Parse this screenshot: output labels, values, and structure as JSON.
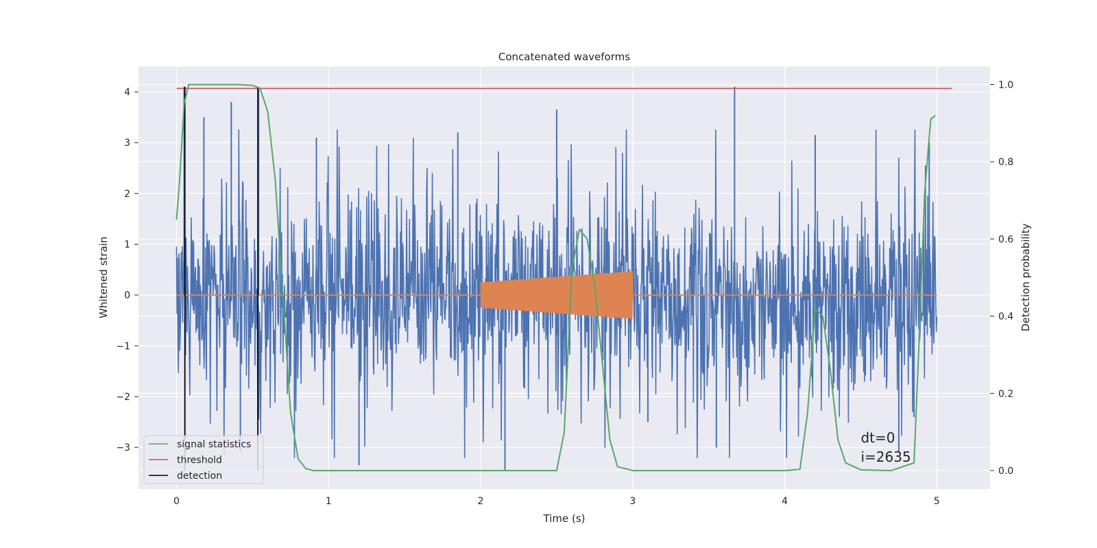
{
  "chart_data": {
    "type": "line",
    "title": "Concatenated waveforms",
    "xlabel": "Time (s)",
    "ylabel_left": "Whitened strain",
    "ylabel_right": "Detection probability",
    "xlim": [
      -0.25,
      5.35
    ],
    "ylim_left": [
      -3.82,
      4.5
    ],
    "ylim_right": [
      -0.048,
      1.047
    ],
    "xticks": [
      0,
      1,
      2,
      3,
      4,
      5
    ],
    "xtick_labels": [
      "0",
      "1",
      "2",
      "3",
      "4",
      "5"
    ],
    "yticks_left": [
      -3,
      -2,
      -1,
      0,
      1,
      2,
      3,
      4
    ],
    "ytick_labels_left": [
      "−3",
      "−2",
      "−1",
      "0",
      "1",
      "2",
      "3",
      "4"
    ],
    "yticks_right": [
      0.0,
      0.2,
      0.4,
      0.6,
      0.8,
      1.0
    ],
    "ytick_labels_right": [
      "0.0",
      "0.2",
      "0.4",
      "0.6",
      "0.8",
      "1.0"
    ],
    "grid": true,
    "legend_position": "lower-left",
    "series": [
      {
        "kind": "noise",
        "axis": "left",
        "color": "#4c72b0",
        "x_range": [
          0,
          5
        ],
        "typical_amplitude": 1.1,
        "peaks": [
          {
            "x": 0.05,
            "y": 4.1
          },
          {
            "x": 0.18,
            "y": 3.5
          },
          {
            "x": 0.36,
            "y": 3.8
          },
          {
            "x": 0.54,
            "y": 4.1
          },
          {
            "x": 0.92,
            "y": 3.1
          },
          {
            "x": 1.2,
            "y": -3.35
          },
          {
            "x": 1.85,
            "y": 3.2
          },
          {
            "x": 2.16,
            "y": -3.45
          },
          {
            "x": 2.5,
            "y": 3.65
          },
          {
            "x": 3.67,
            "y": 4.1
          },
          {
            "x": 4.2,
            "y": 3.15
          },
          {
            "x": 4.95,
            "y": 3.0
          },
          {
            "x": 0.42,
            "y": -3.1
          },
          {
            "x": 3.1,
            "y": -2.5
          },
          {
            "x": 3.55,
            "y": -3.0
          },
          {
            "x": 4.75,
            "y": -3.1
          },
          {
            "x": 4.85,
            "y": -2.4
          }
        ]
      },
      {
        "kind": "chirp",
        "axis": "left",
        "color": "#dd8452",
        "x_range": [
          2.0,
          3.0
        ],
        "amplitude_range": [
          0.25,
          0.47
        ]
      },
      {
        "name": "signal statistics",
        "axis": "right",
        "color": "#55a868",
        "x": [
          0.0,
          0.02,
          0.05,
          0.08,
          0.1,
          0.2,
          0.3,
          0.4,
          0.5,
          0.55,
          0.6,
          0.65,
          0.7,
          0.75,
          0.8,
          0.85,
          0.9,
          1.5,
          2.0,
          2.5,
          2.55,
          2.6,
          2.65,
          2.7,
          2.75,
          2.8,
          2.85,
          2.9,
          3.0,
          3.5,
          4.0,
          4.1,
          4.15,
          4.2,
          4.25,
          4.3,
          4.35,
          4.4,
          4.5,
          4.7,
          4.85,
          4.88,
          4.92,
          4.96,
          4.99
        ],
        "y": [
          0.65,
          0.75,
          0.95,
          1.0,
          1.0,
          1.0,
          1.0,
          1.0,
          0.998,
          0.99,
          0.93,
          0.75,
          0.45,
          0.15,
          0.03,
          0.005,
          0.0,
          0.0,
          0.0,
          0.0,
          0.1,
          0.52,
          0.625,
          0.6,
          0.48,
          0.28,
          0.08,
          0.01,
          0.0,
          0.0,
          0.0,
          0.003,
          0.15,
          0.42,
          0.4,
          0.26,
          0.08,
          0.02,
          0.002,
          0.0,
          0.02,
          0.3,
          0.72,
          0.91,
          0.92
        ]
      },
      {
        "name": "threshold",
        "axis": "right",
        "color": "#c44e52",
        "x": [
          0.0,
          5.1
        ],
        "y": [
          0.99,
          0.99
        ]
      },
      {
        "name": "detection",
        "axis": "left",
        "color": "#000000",
        "x": [
          0.055,
          0.535
        ],
        "y_range": [
          -3.45,
          4.1
        ]
      }
    ],
    "annotation": {
      "lines": [
        "dt=0",
        "i=2635"
      ],
      "x": 4.5,
      "y": -2.9
    }
  }
}
